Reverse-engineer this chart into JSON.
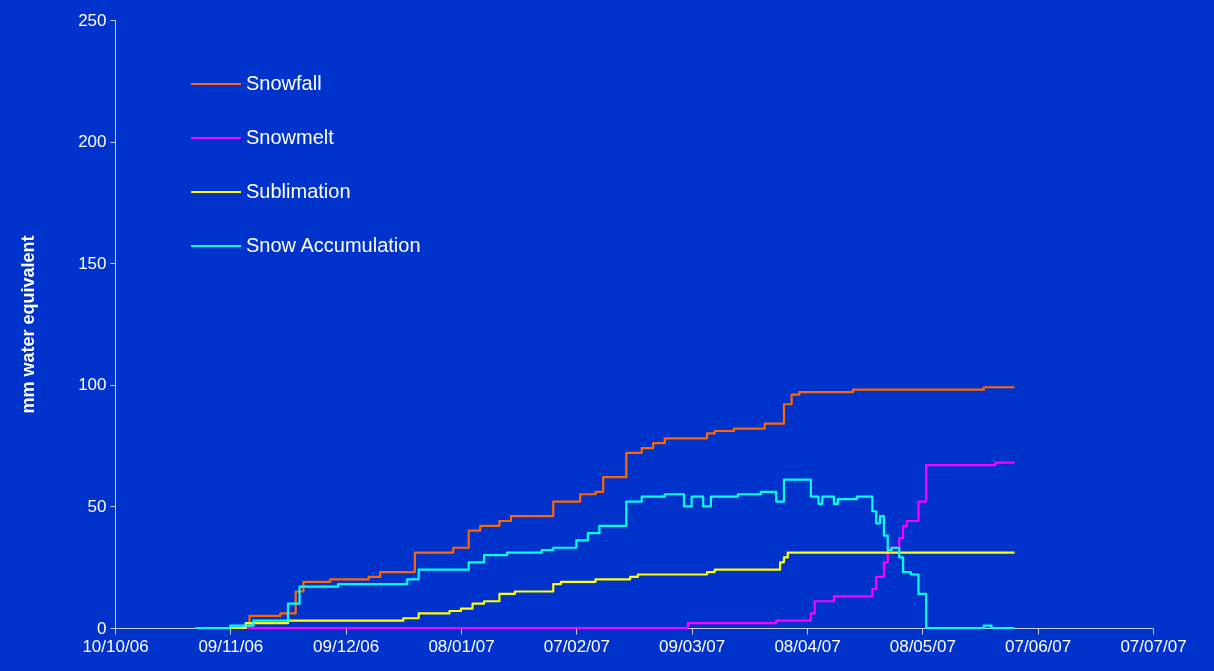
{
  "chart_data": {
    "type": "step",
    "ylabel": "mm water equivalent",
    "xlim": [
      "2006-10-10",
      "2007-07-07"
    ],
    "xticks": [
      {
        "value": "2006-10-10",
        "label": "10/10/06"
      },
      {
        "value": "2006-11-09",
        "label": "09/11/06"
      },
      {
        "value": "2006-12-09",
        "label": "09/12/06"
      },
      {
        "value": "2007-01-08",
        "label": "08/01/07"
      },
      {
        "value": "2007-02-07",
        "label": "07/02/07"
      },
      {
        "value": "2007-03-09",
        "label": "09/03/07"
      },
      {
        "value": "2007-04-08",
        "label": "08/04/07"
      },
      {
        "value": "2007-05-08",
        "label": "08/05/07"
      },
      {
        "value": "2007-06-07",
        "label": "07/06/07"
      },
      {
        "value": "2007-07-07",
        "label": "07/07/07"
      }
    ],
    "ylim": [
      0,
      250
    ],
    "yticks": [
      0,
      50,
      100,
      150,
      200,
      250
    ],
    "legend": "top left",
    "series": [
      {
        "name": "Snowfall",
        "color": "#ff6600",
        "x": [
          "2006-10-31",
          "2006-11-14",
          "2006-11-22",
          "2006-11-26",
          "2006-11-28",
          "2006-12-05",
          "2006-12-15",
          "2006-12-18",
          "2006-12-27",
          "2007-01-06",
          "2007-01-10",
          "2007-01-13",
          "2007-01-18",
          "2007-01-21",
          "2007-02-01",
          "2007-02-08",
          "2007-02-12",
          "2007-02-14",
          "2007-02-20",
          "2007-02-24",
          "2007-02-27",
          "2007-03-02",
          "2007-03-13",
          "2007-03-15",
          "2007-03-20",
          "2007-03-28",
          "2007-04-02",
          "2007-04-04",
          "2007-04-06",
          "2007-04-20",
          "2007-05-24",
          "2007-06-01"
        ],
        "values": [
          0,
          5,
          6,
          15,
          19,
          20,
          21,
          23,
          31,
          33,
          40,
          42,
          44,
          46,
          52,
          55,
          56,
          62,
          72,
          74,
          76,
          78,
          80,
          81,
          82,
          84,
          92,
          96,
          97,
          98,
          99,
          99
        ]
      },
      {
        "name": "Snowmelt",
        "color": "#ff00ff",
        "x": [
          "2006-10-31",
          "2007-03-08",
          "2007-03-31",
          "2007-04-09",
          "2007-04-10",
          "2007-04-15",
          "2007-04-25",
          "2007-04-26",
          "2007-04-28",
          "2007-04-29",
          "2007-05-02",
          "2007-05-03",
          "2007-05-04",
          "2007-05-07",
          "2007-05-09",
          "2007-05-27",
          "2007-06-01"
        ],
        "values": [
          0,
          2,
          3,
          6,
          11,
          13,
          16,
          21,
          27,
          33,
          37,
          42,
          44,
          52,
          67,
          68,
          68
        ]
      },
      {
        "name": "Sublimation",
        "color": "#ffff00",
        "x": [
          "2006-10-31",
          "2006-11-13",
          "2006-11-24",
          "2006-12-24",
          "2006-12-28",
          "2007-01-05",
          "2007-01-08",
          "2007-01-11",
          "2007-01-14",
          "2007-01-18",
          "2007-01-22",
          "2007-02-01",
          "2007-02-03",
          "2007-02-12",
          "2007-02-21",
          "2007-02-23",
          "2007-03-13",
          "2007-03-15",
          "2007-04-01",
          "2007-04-02",
          "2007-04-03",
          "2007-06-01"
        ],
        "values": [
          0,
          2,
          3,
          4,
          6,
          7,
          8,
          10,
          11,
          14,
          15,
          18,
          19,
          20,
          21,
          22,
          23,
          24,
          27,
          29,
          31,
          31
        ]
      },
      {
        "name": "Snow Accumulation",
        "color": "#00ffff",
        "x": [
          "2006-10-31",
          "2006-11-09",
          "2006-11-15",
          "2006-11-24",
          "2006-11-27",
          "2006-12-07",
          "2006-12-25",
          "2006-12-28",
          "2007-01-10",
          "2007-01-14",
          "2007-01-20",
          "2007-01-29",
          "2007-02-01",
          "2007-02-07",
          "2007-02-10",
          "2007-02-13",
          "2007-02-20",
          "2007-02-24",
          "2007-03-02",
          "2007-03-07",
          "2007-03-09",
          "2007-03-12",
          "2007-03-14",
          "2007-03-21",
          "2007-03-27",
          "2007-03-31",
          "2007-04-02",
          "2007-04-09",
          "2007-04-11",
          "2007-04-12",
          "2007-04-15",
          "2007-04-16",
          "2007-04-21",
          "2007-04-25",
          "2007-04-26",
          "2007-04-27",
          "2007-04-28",
          "2007-04-29",
          "2007-04-30",
          "2007-05-02",
          "2007-05-03",
          "2007-05-05",
          "2007-05-07",
          "2007-05-09",
          "2007-05-24",
          "2007-05-26",
          "2007-06-01"
        ],
        "values": [
          0,
          1,
          3,
          10,
          17,
          18,
          20,
          24,
          27,
          30,
          31,
          32,
          33,
          36,
          39,
          42,
          52,
          54,
          55,
          50,
          54,
          50,
          54,
          55,
          56,
          52,
          61,
          54,
          51,
          54,
          51,
          53,
          54,
          48,
          43,
          46,
          38,
          32,
          33,
          29,
          23,
          22,
          14,
          0,
          1,
          0,
          0
        ]
      }
    ]
  }
}
